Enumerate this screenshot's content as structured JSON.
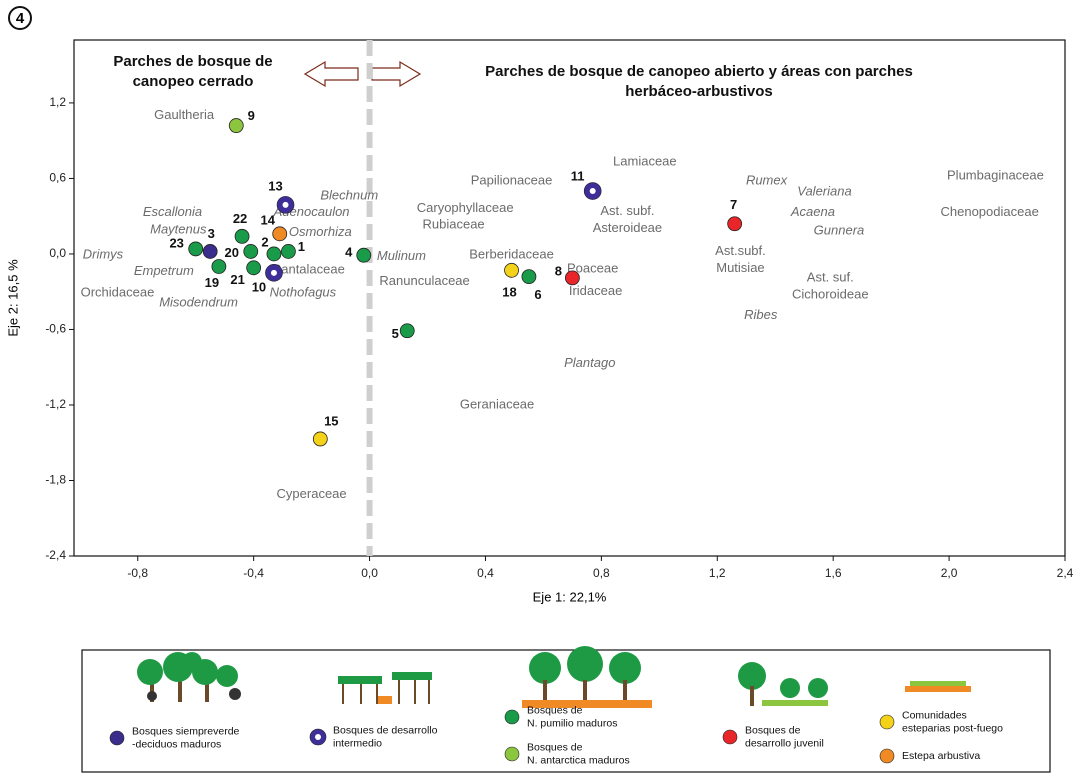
{
  "chart_data": {
    "type": "scatter",
    "panel_label": "4",
    "headings": [
      {
        "lines": [
          "Parches de bosque de",
          "canopeo cerrado"
        ]
      },
      {
        "lines": [
          "Parches de bosque de canopeo abierto y áreas con parches",
          "herbáceo-arbustivos"
        ]
      }
    ],
    "xlabel": "Eje 1: 22,1%",
    "ylabel": "Eje 2: 16,5 %",
    "xlim": [
      -1.02,
      2.4
    ],
    "ylim": [
      -2.4,
      1.7
    ],
    "xticks": [
      {
        "value": -0.8,
        "label": "-0,8"
      },
      {
        "value": -0.4,
        "label": "-0,4"
      },
      {
        "value": 0,
        "label": "0,0"
      },
      {
        "value": 0.4,
        "label": "0,4"
      },
      {
        "value": 0.8,
        "label": "0,8"
      },
      {
        "value": 1.2,
        "label": "1,2"
      },
      {
        "value": 1.6,
        "label": "1,6"
      },
      {
        "value": 2.0,
        "label": "2,0"
      },
      {
        "value": 2.4,
        "label": "2,4"
      }
    ],
    "yticks": [
      {
        "value": -2.4,
        "label": "-2,4"
      },
      {
        "value": -1.8,
        "label": "-1,8"
      },
      {
        "value": -1.2,
        "label": "-1,2"
      },
      {
        "value": -0.6,
        "label": "-0,6"
      },
      {
        "value": 0,
        "label": "0,0"
      },
      {
        "value": 0.6,
        "label": "0,6"
      },
      {
        "value": 1.2,
        "label": "1,2"
      }
    ],
    "zero_line": true,
    "series": [
      {
        "name": [
          "Bosques siempreverde",
          "-deciduos maduros"
        ],
        "color": "#3a2d8c",
        "marker": "dot",
        "labels": [
          "3"
        ],
        "x": [
          -0.55
        ],
        "y": [
          0.02
        ]
      },
      {
        "name": [
          "Bosques de desarrollo",
          "intermedio"
        ],
        "color": "#3d2e9a",
        "marker": "ring",
        "labels": [
          "13",
          "10",
          "11"
        ],
        "x": [
          -0.29,
          -0.33,
          0.77
        ],
        "y": [
          0.39,
          -0.15,
          0.5
        ]
      },
      {
        "name": [
          "Bosques de",
          "N. pumilio maduros"
        ],
        "color": "#1a9b4a",
        "marker": "dot",
        "labels": [
          "22",
          "23",
          "20",
          "2",
          "1",
          "19",
          "21",
          "4",
          "5",
          "6"
        ],
        "x": [
          -0.44,
          -0.6,
          -0.41,
          -0.33,
          -0.28,
          -0.52,
          -0.4,
          -0.02,
          0.13,
          0.55
        ],
        "y": [
          0.14,
          0.04,
          0.02,
          0.0,
          0.02,
          -0.1,
          -0.11,
          -0.01,
          -0.61,
          -0.18
        ]
      },
      {
        "name": [
          "Bosques de",
          "N. antarctica maduros"
        ],
        "color": "#8cc63f",
        "marker": "dot",
        "labels": [
          "9"
        ],
        "x": [
          -0.46
        ],
        "y": [
          1.02
        ]
      },
      {
        "name": [
          "Bosques de",
          "desarrollo juvenil"
        ],
        "color": "#e8262a",
        "marker": "dot",
        "labels": [
          "8",
          "7"
        ],
        "x": [
          0.7,
          1.26
        ],
        "y": [
          -0.19,
          0.24
        ]
      },
      {
        "name": [
          "Comunidades",
          "esteparias post-fuego"
        ],
        "color": "#f5d21a",
        "marker": "dot",
        "labels": [
          "18",
          "15"
        ],
        "x": [
          0.49,
          -0.17
        ],
        "y": [
          -0.13,
          -1.47
        ]
      },
      {
        "name": [
          "Estepa arbustiva"
        ],
        "color": "#f08a24",
        "marker": "dot",
        "labels": [
          "14"
        ],
        "x": [
          -0.31
        ],
        "y": [
          0.16
        ]
      }
    ],
    "species": [
      {
        "lines": [
          "Gaultheria"
        ],
        "x": -0.64,
        "y": 1.1,
        "italic": false
      },
      {
        "lines": [
          "Escallonia"
        ],
        "x": -0.68,
        "y": 0.33,
        "italic": true
      },
      {
        "lines": [
          "Maytenus"
        ],
        "x": -0.66,
        "y": 0.19,
        "italic": true
      },
      {
        "lines": [
          "Drimys"
        ],
        "x": -0.92,
        "y": -0.01,
        "italic": true
      },
      {
        "lines": [
          "Empetrum"
        ],
        "x": -0.71,
        "y": -0.14,
        "italic": true
      },
      {
        "lines": [
          "Orchidaceae"
        ],
        "x": -0.87,
        "y": -0.31,
        "italic": false
      },
      {
        "lines": [
          "Misodendrum"
        ],
        "x": -0.59,
        "y": -0.39,
        "italic": true
      },
      {
        "lines": [
          "Nothofagus"
        ],
        "x": -0.23,
        "y": -0.31,
        "italic": true
      },
      {
        "lines": [
          "Santalaceae"
        ],
        "x": -0.21,
        "y": -0.13,
        "italic": false
      },
      {
        "lines": [
          "Osmorhiza"
        ],
        "x": -0.17,
        "y": 0.17,
        "italic": true
      },
      {
        "lines": [
          "Adenocaulon"
        ],
        "x": -0.2,
        "y": 0.33,
        "italic": true
      },
      {
        "lines": [
          "Blechnum"
        ],
        "x": -0.07,
        "y": 0.46,
        "italic": true
      },
      {
        "lines": [
          "Mulinum"
        ],
        "x": 0.11,
        "y": -0.02,
        "italic": true
      },
      {
        "lines": [
          "Ranunculaceae"
        ],
        "x": 0.19,
        "y": -0.22,
        "italic": false
      },
      {
        "lines": [
          "Caryophyllaceae"
        ],
        "x": 0.33,
        "y": 0.36,
        "italic": false
      },
      {
        "lines": [
          "Rubiaceae"
        ],
        "x": 0.29,
        "y": 0.23,
        "italic": false
      },
      {
        "lines": [
          "Papilionaceae"
        ],
        "x": 0.49,
        "y": 0.58,
        "italic": false
      },
      {
        "lines": [
          "Berberidaceae"
        ],
        "x": 0.49,
        "y": -0.01,
        "italic": false
      },
      {
        "lines": [
          "Poaceae"
        ],
        "x": 0.77,
        "y": -0.12,
        "italic": false
      },
      {
        "lines": [
          "Iridaceae"
        ],
        "x": 0.78,
        "y": -0.3,
        "italic": false
      },
      {
        "lines": [
          "Lamiaceae"
        ],
        "x": 0.95,
        "y": 0.73,
        "italic": false
      },
      {
        "lines": [
          "Ast. subf.",
          "Asteroideae"
        ],
        "x": 0.89,
        "y": 0.27,
        "italic": false
      },
      {
        "lines": [
          "Plantago"
        ],
        "x": 0.76,
        "y": -0.87,
        "italic": true
      },
      {
        "lines": [
          "Geraniaceae"
        ],
        "x": 0.44,
        "y": -1.2,
        "italic": false
      },
      {
        "lines": [
          "Cyperaceae"
        ],
        "x": -0.2,
        "y": -1.91,
        "italic": false
      },
      {
        "lines": [
          "Rumex"
        ],
        "x": 1.37,
        "y": 0.58,
        "italic": true
      },
      {
        "lines": [
          "Valeriana"
        ],
        "x": 1.57,
        "y": 0.49,
        "italic": true
      },
      {
        "lines": [
          "Acaena"
        ],
        "x": 1.53,
        "y": 0.33,
        "italic": true
      },
      {
        "lines": [
          "Gunnera"
        ],
        "x": 1.62,
        "y": 0.18,
        "italic": true
      },
      {
        "lines": [
          "Ast.subf.",
          "Mutisiae"
        ],
        "x": 1.28,
        "y": -0.05,
        "italic": false
      },
      {
        "lines": [
          "Ast. suf.",
          "Cichoroideae"
        ],
        "x": 1.59,
        "y": -0.26,
        "italic": false
      },
      {
        "lines": [
          "Ribes"
        ],
        "x": 1.35,
        "y": -0.49,
        "italic": true
      },
      {
        "lines": [
          "Plumbaginaceae"
        ],
        "x": 2.16,
        "y": 0.62,
        "italic": false
      },
      {
        "lines": [
          "Chenopodiaceae"
        ],
        "x": 2.14,
        "y": 0.33,
        "italic": false
      }
    ]
  }
}
